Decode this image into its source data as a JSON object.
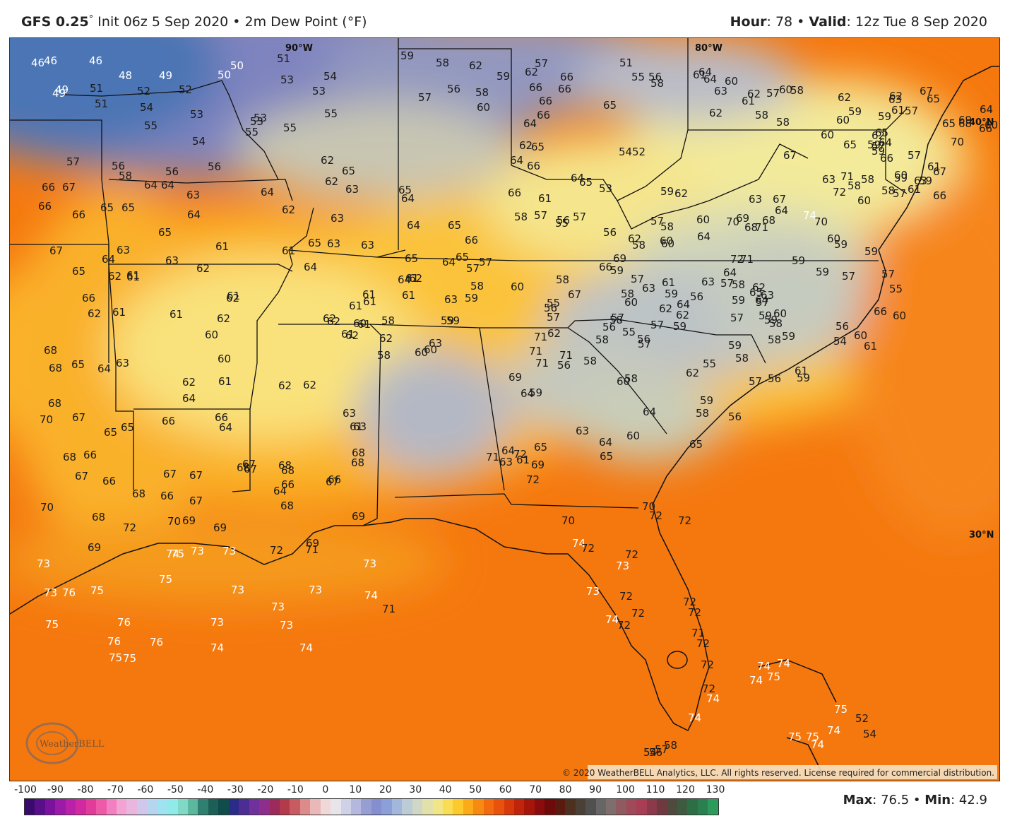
{
  "header": {
    "model": "GFS 0.25",
    "deg": "°",
    "init": " Init 06z 5 Sep 2020 • 2m Dew Point (°F)",
    "hour_label": "Hour",
    "hour_value": ": 78 • ",
    "valid_label": "Valid",
    "valid_value": ": 12z Tue 8 Sep 2020"
  },
  "grid_labels": {
    "lon_90": "90°W",
    "lon_80": "80°W",
    "lat_40": "40°N",
    "lat_30": "30°N"
  },
  "copyright": "© 2020 WeatherBELL Analytics, LLC. All rights reserved. License required for commercial distribution.",
  "logo_text": "WeatherBELL",
  "colorbar": {
    "labels": [
      "-100",
      "-90",
      "-80",
      "-70",
      "-60",
      "-50",
      "-40",
      "-30",
      "-20",
      "-10",
      "0",
      "10",
      "20",
      "30",
      "40",
      "50",
      "60",
      "70",
      "80",
      "90",
      "100",
      "110",
      "120",
      "130"
    ],
    "colors": [
      "#3b0a6e",
      "#5a0f8a",
      "#7b129e",
      "#9b1aa8",
      "#b821a8",
      "#d12aa0",
      "#e23c9a",
      "#ef5aa8",
      "#f27fc0",
      "#f3a2d4",
      "#e8b6df",
      "#d1c7ea",
      "#b6d6f0",
      "#9fe2f2",
      "#8feae8",
      "#7fd9c6",
      "#5cb79f",
      "#2f8070",
      "#1b5f56",
      "#0f4c4a",
      "#2b2b8a",
      "#4c2d94",
      "#70319c",
      "#8d2e8c",
      "#9c2a5b",
      "#b23a4b",
      "#c85a62",
      "#dc8a8a",
      "#eab8b8",
      "#f1d8d8",
      "#e9e4ea",
      "#cfd2e6",
      "#b3b8dc",
      "#979ed2",
      "#858fd0",
      "#8d9fd8",
      "#a3b7dd",
      "#bcccd6",
      "#d0d7c6",
      "#e2e0ab",
      "#f2e588",
      "#fbdd55",
      "#fdc92c",
      "#fbaa18",
      "#f78a10",
      "#f26b0e",
      "#e8520c",
      "#d63a0b",
      "#c0240a",
      "#a5150a",
      "#8a0c0c",
      "#6e0a0a",
      "#5a1a10",
      "#4e3020",
      "#4a4036",
      "#505050",
      "#666666",
      "#7e6e6e",
      "#8f5a60",
      "#9e4a58",
      "#a83e54",
      "#8a3a4a",
      "#6e3a40",
      "#4e4a3e",
      "#3e5a40",
      "#2e6e46",
      "#2a8050",
      "#2c9a5a"
    ]
  },
  "maxmin": {
    "max_label": "Max",
    "max_value": ": 76.5 • ",
    "min_label": "Min",
    "min_value": ": 42.9"
  },
  "stations": [
    {
      "t": "46"
    },
    {
      "t": "46"
    },
    {
      "t": "46"
    },
    {
      "t": "48"
    },
    {
      "t": "49"
    },
    {
      "t": "50"
    },
    {
      "t": "50"
    },
    {
      "t": "51"
    },
    {
      "t": "52"
    },
    {
      "t": "49"
    },
    {
      "t": "51"
    },
    {
      "t": "52"
    },
    {
      "t": "49"
    },
    {
      "t": "51"
    },
    {
      "t": "53"
    },
    {
      "t": "53"
    },
    {
      "t": "54"
    },
    {
      "t": "54"
    },
    {
      "t": "55"
    },
    {
      "t": "53"
    },
    {
      "t": "53"
    },
    {
      "t": "53"
    },
    {
      "t": "55"
    },
    {
      "t": "55"
    },
    {
      "t": "54"
    },
    {
      "t": "55"
    },
    {
      "t": "56"
    },
    {
      "t": "58"
    },
    {
      "t": "57"
    },
    {
      "t": "56"
    },
    {
      "t": "56"
    },
    {
      "t": "64"
    },
    {
      "t": "64"
    },
    {
      "t": "66"
    },
    {
      "t": "67"
    },
    {
      "t": "66"
    },
    {
      "t": "66"
    },
    {
      "t": "65"
    },
    {
      "t": "65"
    },
    {
      "t": "65"
    },
    {
      "t": "64"
    },
    {
      "t": "64"
    },
    {
      "t": "63"
    },
    {
      "t": "62"
    },
    {
      "t": "61"
    },
    {
      "t": "61"
    },
    {
      "t": "67"
    },
    {
      "t": "65"
    },
    {
      "t": "64"
    },
    {
      "t": "63"
    },
    {
      "t": "63"
    },
    {
      "t": "62"
    },
    {
      "t": "61"
    },
    {
      "t": "62"
    },
    {
      "t": "61"
    },
    {
      "t": "61"
    },
    {
      "t": "62"
    },
    {
      "t": "66"
    },
    {
      "t": "62"
    },
    {
      "t": "61"
    },
    {
      "t": "61"
    },
    {
      "t": "62"
    },
    {
      "t": "60"
    },
    {
      "t": "68"
    },
    {
      "t": "65"
    },
    {
      "t": "64"
    },
    {
      "t": "63"
    },
    {
      "t": "68"
    },
    {
      "t": "60"
    },
    {
      "t": "61"
    },
    {
      "t": "62"
    },
    {
      "t": "64"
    },
    {
      "t": "68"
    },
    {
      "t": "70"
    },
    {
      "t": "67"
    },
    {
      "t": "65"
    },
    {
      "t": "65"
    },
    {
      "t": "66"
    },
    {
      "t": "66"
    },
    {
      "t": "64"
    },
    {
      "t": "68"
    },
    {
      "t": "66"
    },
    {
      "t": "67"
    },
    {
      "t": "66"
    },
    {
      "t": "67"
    },
    {
      "t": "67"
    },
    {
      "t": "67"
    },
    {
      "t": "68"
    },
    {
      "t": "68"
    },
    {
      "t": "68"
    },
    {
      "t": "66"
    },
    {
      "t": "67"
    },
    {
      "t": "70"
    },
    {
      "t": "68"
    },
    {
      "t": "72"
    },
    {
      "t": "70"
    },
    {
      "t": "69"
    },
    {
      "t": "69"
    },
    {
      "t": "73"
    },
    {
      "t": "69"
    },
    {
      "t": "73"
    },
    {
      "t": "75"
    },
    {
      "t": "73"
    },
    {
      "t": "73"
    },
    {
      "t": "76"
    },
    {
      "t": "75"
    },
    {
      "t": "75"
    },
    {
      "t": "76"
    },
    {
      "t": "76"
    },
    {
      "t": "75"
    },
    {
      "t": "75"
    },
    {
      "t": "76"
    },
    {
      "t": "75"
    },
    {
      "t": "74"
    },
    {
      "t": "74"
    },
    {
      "t": "73"
    },
    {
      "t": "73"
    },
    {
      "t": "73"
    },
    {
      "t": "73"
    },
    {
      "t": "74"
    },
    {
      "t": "73"
    },
    {
      "t": "73"
    },
    {
      "t": "74"
    },
    {
      "t": "71"
    },
    {
      "t": "72"
    },
    {
      "t": "71"
    },
    {
      "t": "69"
    },
    {
      "t": "68"
    },
    {
      "t": "69"
    },
    {
      "t": "67"
    },
    {
      "t": "68"
    },
    {
      "t": "67"
    },
    {
      "t": "66"
    },
    {
      "t": "66"
    },
    {
      "t": "64"
    },
    {
      "t": "62"
    },
    {
      "t": "62"
    },
    {
      "t": "61"
    },
    {
      "t": "63"
    },
    {
      "t": "63"
    },
    {
      "t": "68"
    },
    {
      "t": "68"
    },
    {
      "t": "61"
    },
    {
      "t": "60"
    },
    {
      "t": "58"
    },
    {
      "t": "58"
    },
    {
      "t": "60"
    },
    {
      "t": "60"
    },
    {
      "t": "59"
    },
    {
      "t": "59"
    },
    {
      "t": "59"
    },
    {
      "t": "61"
    },
    {
      "t": "62"
    },
    {
      "t": "62"
    },
    {
      "t": "61"
    },
    {
      "t": "61"
    },
    {
      "t": "62"
    },
    {
      "t": "61"
    },
    {
      "t": "62"
    },
    {
      "t": "63"
    },
    {
      "t": "63"
    },
    {
      "t": "62"
    },
    {
      "t": "61"
    },
    {
      "t": "61"
    },
    {
      "t": "65"
    },
    {
      "t": "64"
    },
    {
      "t": "64"
    },
    {
      "t": "64"
    },
    {
      "t": "65"
    },
    {
      "t": "63"
    },
    {
      "t": "63"
    },
    {
      "t": "63"
    },
    {
      "t": "63"
    },
    {
      "t": "62"
    },
    {
      "t": "62"
    },
    {
      "t": "65"
    },
    {
      "t": "65"
    },
    {
      "t": "64"
    },
    {
      "t": "64"
    },
    {
      "t": "65"
    },
    {
      "t": "66"
    },
    {
      "t": "65"
    },
    {
      "t": "66"
    },
    {
      "t": "61"
    },
    {
      "t": "58"
    },
    {
      "t": "57"
    },
    {
      "t": "57"
    },
    {
      "t": "56"
    },
    {
      "t": "55"
    },
    {
      "t": "58"
    },
    {
      "t": "60"
    },
    {
      "t": "55"
    },
    {
      "t": "56"
    },
    {
      "t": "57"
    },
    {
      "t": "57"
    },
    {
      "t": "58"
    },
    {
      "t": "57"
    },
    {
      "t": "62"
    },
    {
      "t": "67"
    },
    {
      "t": "66"
    },
    {
      "t": "69"
    },
    {
      "t": "71"
    },
    {
      "t": "71"
    },
    {
      "t": "71"
    },
    {
      "t": "71"
    },
    {
      "t": "69"
    },
    {
      "t": "64"
    },
    {
      "t": "59"
    },
    {
      "t": "56"
    },
    {
      "t": "58"
    },
    {
      "t": "58"
    },
    {
      "t": "57"
    },
    {
      "t": "58"
    },
    {
      "t": "60"
    },
    {
      "t": "60"
    },
    {
      "t": "64"
    },
    {
      "t": "65"
    },
    {
      "t": "63"
    },
    {
      "t": "64"
    },
    {
      "t": "65"
    },
    {
      "t": "65"
    },
    {
      "t": "69"
    },
    {
      "t": "63"
    },
    {
      "t": "64"
    },
    {
      "t": "61"
    },
    {
      "t": "71"
    },
    {
      "t": "72"
    },
    {
      "t": "72"
    },
    {
      "t": "70"
    },
    {
      "t": "74"
    },
    {
      "t": "72"
    },
    {
      "t": "73"
    },
    {
      "t": "72"
    },
    {
      "t": "73"
    },
    {
      "t": "74"
    },
    {
      "t": "72"
    },
    {
      "t": "72"
    },
    {
      "t": "72"
    },
    {
      "t": "70"
    },
    {
      "t": "72"
    },
    {
      "t": "72"
    },
    {
      "t": "72"
    },
    {
      "t": "72"
    },
    {
      "t": "71"
    },
    {
      "t": "72"
    },
    {
      "t": "72"
    },
    {
      "t": "72"
    },
    {
      "t": "74"
    },
    {
      "t": "74"
    },
    {
      "t": "74"
    },
    {
      "t": "75"
    },
    {
      "t": "74"
    },
    {
      "t": "74"
    },
    {
      "t": "75"
    },
    {
      "t": "75"
    },
    {
      "t": "75"
    },
    {
      "t": "74"
    },
    {
      "t": "74"
    },
    {
      "t": "52"
    },
    {
      "t": "54"
    },
    {
      "t": "56"
    },
    {
      "t": "54"
    },
    {
      "t": "57"
    },
    {
      "t": "58"
    },
    {
      "t": "59"
    },
    {
      "t": "58"
    },
    {
      "t": "62"
    },
    {
      "t": "57"
    },
    {
      "t": "56"
    },
    {
      "t": "57"
    },
    {
      "t": "59"
    },
    {
      "t": "58"
    },
    {
      "t": "60"
    },
    {
      "t": "62"
    },
    {
      "t": "66"
    },
    {
      "t": "66"
    },
    {
      "t": "66"
    },
    {
      "t": "66"
    },
    {
      "t": "65"
    },
    {
      "t": "66"
    },
    {
      "t": "64"
    },
    {
      "t": "62"
    },
    {
      "t": "65"
    },
    {
      "t": "64"
    },
    {
      "t": "66"
    },
    {
      "t": "65"
    },
    {
      "t": "64"
    },
    {
      "t": "53"
    },
    {
      "t": "52"
    },
    {
      "t": "54"
    },
    {
      "t": "51"
    },
    {
      "t": "55"
    },
    {
      "t": "56"
    },
    {
      "t": "58"
    },
    {
      "t": "61"
    },
    {
      "t": "64"
    },
    {
      "t": "64"
    },
    {
      "t": "63"
    },
    {
      "t": "62"
    },
    {
      "t": "60"
    },
    {
      "t": "62"
    },
    {
      "t": "61"
    },
    {
      "t": "58"
    },
    {
      "t": "58"
    },
    {
      "t": "57"
    },
    {
      "t": "60"
    },
    {
      "t": "58"
    },
    {
      "t": "62"
    },
    {
      "t": "60"
    },
    {
      "t": "59"
    },
    {
      "t": "61"
    },
    {
      "t": "63"
    },
    {
      "t": "65"
    },
    {
      "t": "62"
    },
    {
      "t": "65"
    },
    {
      "t": "67"
    },
    {
      "t": "65"
    },
    {
      "t": "68"
    },
    {
      "t": "70"
    },
    {
      "t": "67"
    },
    {
      "t": "69"
    },
    {
      "t": "64"
    },
    {
      "t": "66"
    },
    {
      "t": "60"
    },
    {
      "t": "61"
    },
    {
      "t": "59"
    },
    {
      "t": "60"
    },
    {
      "t": "61"
    },
    {
      "t": "59"
    },
    {
      "t": "60"
    },
    {
      "t": "59"
    },
    {
      "t": "60"
    },
    {
      "t": "65"
    },
    {
      "t": "64"
    },
    {
      "t": "62"
    },
    {
      "t": "59"
    },
    {
      "t": "57"
    },
    {
      "t": "57"
    },
    {
      "t": "57"
    },
    {
      "t": "59"
    },
    {
      "t": "58"
    },
    {
      "t": "58"
    },
    {
      "t": "58"
    },
    {
      "t": "57"
    },
    {
      "t": "63"
    },
    {
      "t": "66"
    },
    {
      "t": "66"
    },
    {
      "t": "71"
    },
    {
      "t": "72"
    },
    {
      "t": "74"
    },
    {
      "t": "63"
    },
    {
      "t": "67"
    },
    {
      "t": "67"
    },
    {
      "t": "63"
    },
    {
      "t": "68"
    },
    {
      "t": "64"
    },
    {
      "t": "68"
    },
    {
      "t": "71"
    },
    {
      "t": "70"
    },
    {
      "t": "60"
    },
    {
      "t": "59"
    },
    {
      "t": "59"
    },
    {
      "t": "57"
    },
    {
      "t": "55"
    },
    {
      "t": "59"
    },
    {
      "t": "59"
    },
    {
      "t": "57"
    },
    {
      "t": "60"
    },
    {
      "t": "59"
    },
    {
      "t": "57"
    },
    {
      "t": "58"
    },
    {
      "t": "56"
    },
    {
      "t": "54"
    },
    {
      "t": "60"
    },
    {
      "t": "61"
    },
    {
      "t": "60"
    },
    {
      "t": "66"
    },
    {
      "t": "69"
    },
    {
      "t": "70"
    },
    {
      "t": "71"
    },
    {
      "t": "72"
    },
    {
      "t": "59"
    },
    {
      "t": "58"
    },
    {
      "t": "57"
    },
    {
      "t": "56"
    },
    {
      "t": "57"
    },
    {
      "t": "59"
    },
    {
      "t": "59"
    },
    {
      "t": "59"
    },
    {
      "t": "58"
    },
    {
      "t": "55"
    },
    {
      "t": "62"
    },
    {
      "t": "59"
    },
    {
      "t": "58"
    },
    {
      "t": "56"
    },
    {
      "t": "57"
    },
    {
      "t": "56"
    },
    {
      "t": "61"
    },
    {
      "t": "59"
    },
    {
      "t": "59"
    },
    {
      "t": "58"
    },
    {
      "t": "59"
    },
    {
      "t": "63"
    },
    {
      "t": "64"
    },
    {
      "t": "62"
    },
    {
      "t": "65"
    },
    {
      "t": "64"
    },
    {
      "t": "63"
    },
    {
      "t": "64"
    },
    {
      "t": "62"
    },
    {
      "t": "62"
    },
    {
      "t": "61"
    },
    {
      "t": "63"
    },
    {
      "t": "57"
    },
    {
      "t": "56"
    },
    {
      "t": "55"
    },
    {
      "t": "56"
    },
    {
      "t": "58"
    },
    {
      "t": "57"
    },
    {
      "t": "60"
    },
    {
      "t": "58"
    },
    {
      "t": "57"
    },
    {
      "t": "59"
    },
    {
      "t": "58"
    },
    {
      "t": "56"
    },
    {
      "t": "58"
    },
    {
      "t": "60"
    },
    {
      "t": "57"
    },
    {
      "t": "60"
    },
    {
      "t": "62"
    },
    {
      "t": "64"
    },
    {
      "t": "60"
    },
    {
      "t": "62"
    },
    {
      "t": "59"
    }
  ]
}
